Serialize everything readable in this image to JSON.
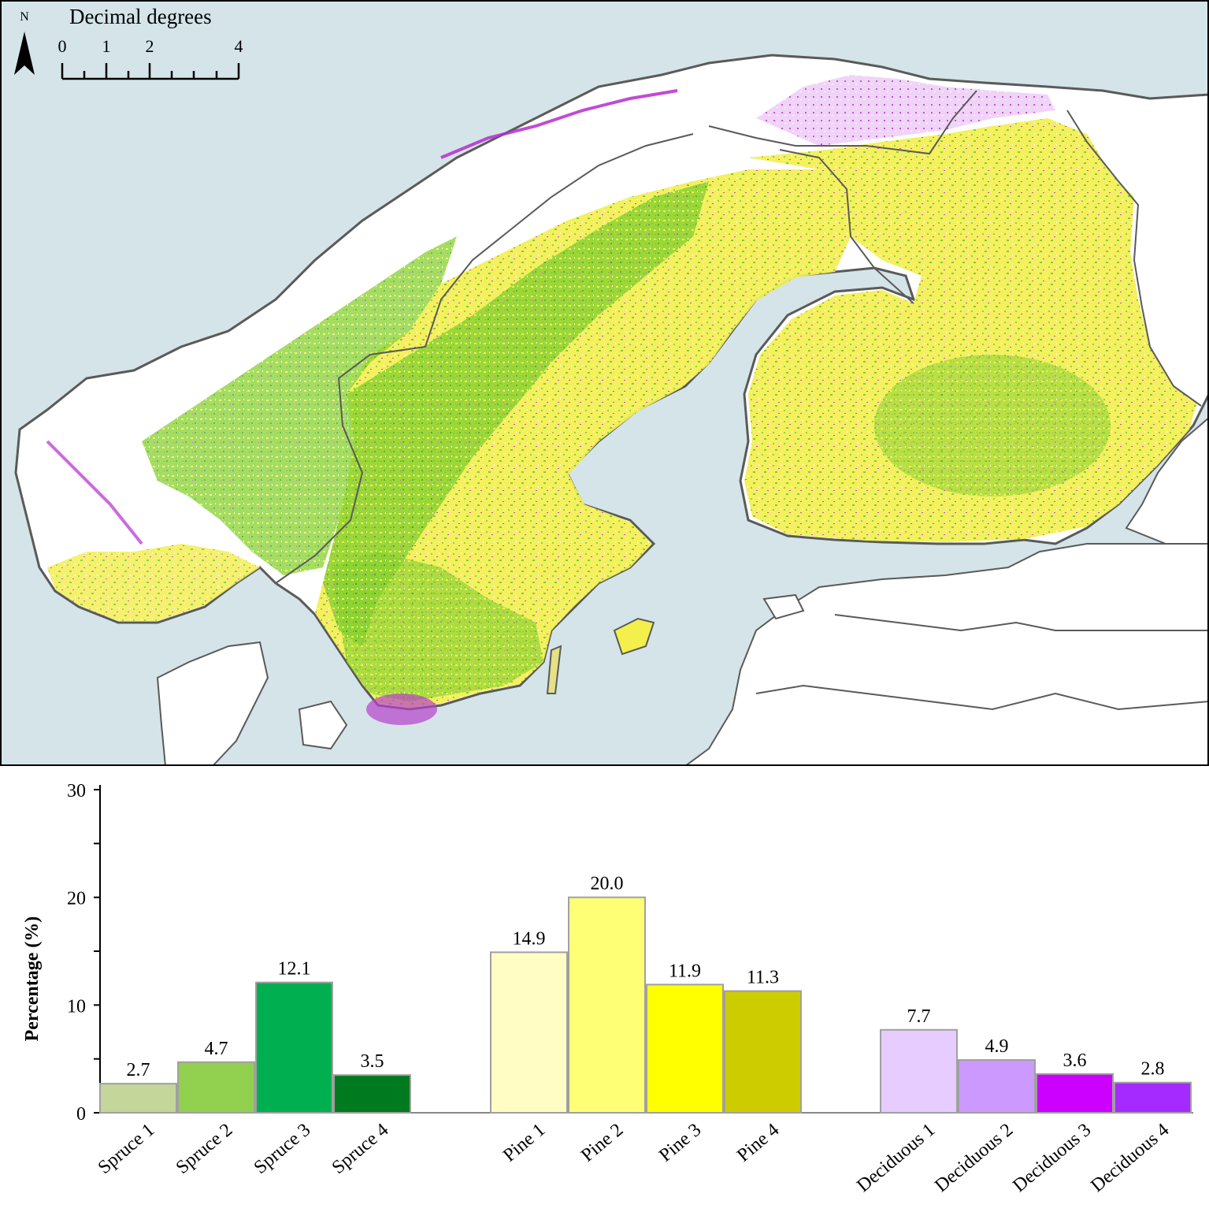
{
  "map": {
    "north_label": "N",
    "scale_title": "Decimal degrees",
    "scale_ticks": [
      "0",
      "1",
      "2",
      "4"
    ],
    "colors": {
      "sea": "#d4e4e9",
      "land": "#ffffff",
      "border": "#5a5a5a",
      "spruce": "#7ed321",
      "spruce_dark": "#3f9e2a",
      "pine": "#f4f04a",
      "pine_light": "#f7f59a",
      "deciduous": "#c040d8",
      "deciduous_light": "#e6c3f2"
    }
  },
  "chart_data": {
    "type": "bar",
    "ylabel": "Percentage (%)",
    "ylim": [
      0,
      30
    ],
    "yticks": [
      "0",
      "10",
      "20",
      "30"
    ],
    "groups": [
      {
        "categories": [
          "Spruce 1",
          "Spruce 2",
          "Spruce 3",
          "Spruce 4"
        ],
        "values": [
          2.7,
          4.7,
          12.1,
          3.5
        ],
        "labels": [
          "2.7",
          "4.7",
          "12.1",
          "3.5"
        ],
        "colors": [
          "#c5d69a",
          "#92d050",
          "#00b050",
          "#007a1f"
        ]
      },
      {
        "categories": [
          "Pine 1",
          "Pine 2",
          "Pine 3",
          "Pine 4"
        ],
        "values": [
          14.9,
          20.0,
          11.9,
          11.3
        ],
        "labels": [
          "14.9",
          "20.0",
          "11.9",
          "11.3"
        ],
        "colors": [
          "#fffcc4",
          "#ffff75",
          "#ffff00",
          "#cccc00"
        ]
      },
      {
        "categories": [
          "Deciduous 1",
          "Deciduous 2",
          "Deciduous 3",
          "Deciduous 4"
        ],
        "values": [
          7.7,
          4.9,
          3.6,
          2.8
        ],
        "labels": [
          "7.7",
          "4.9",
          "3.6",
          "2.8"
        ],
        "colors": [
          "#e6ccff",
          "#cc99ff",
          "#cc00ff",
          "#a52aff"
        ]
      }
    ]
  }
}
